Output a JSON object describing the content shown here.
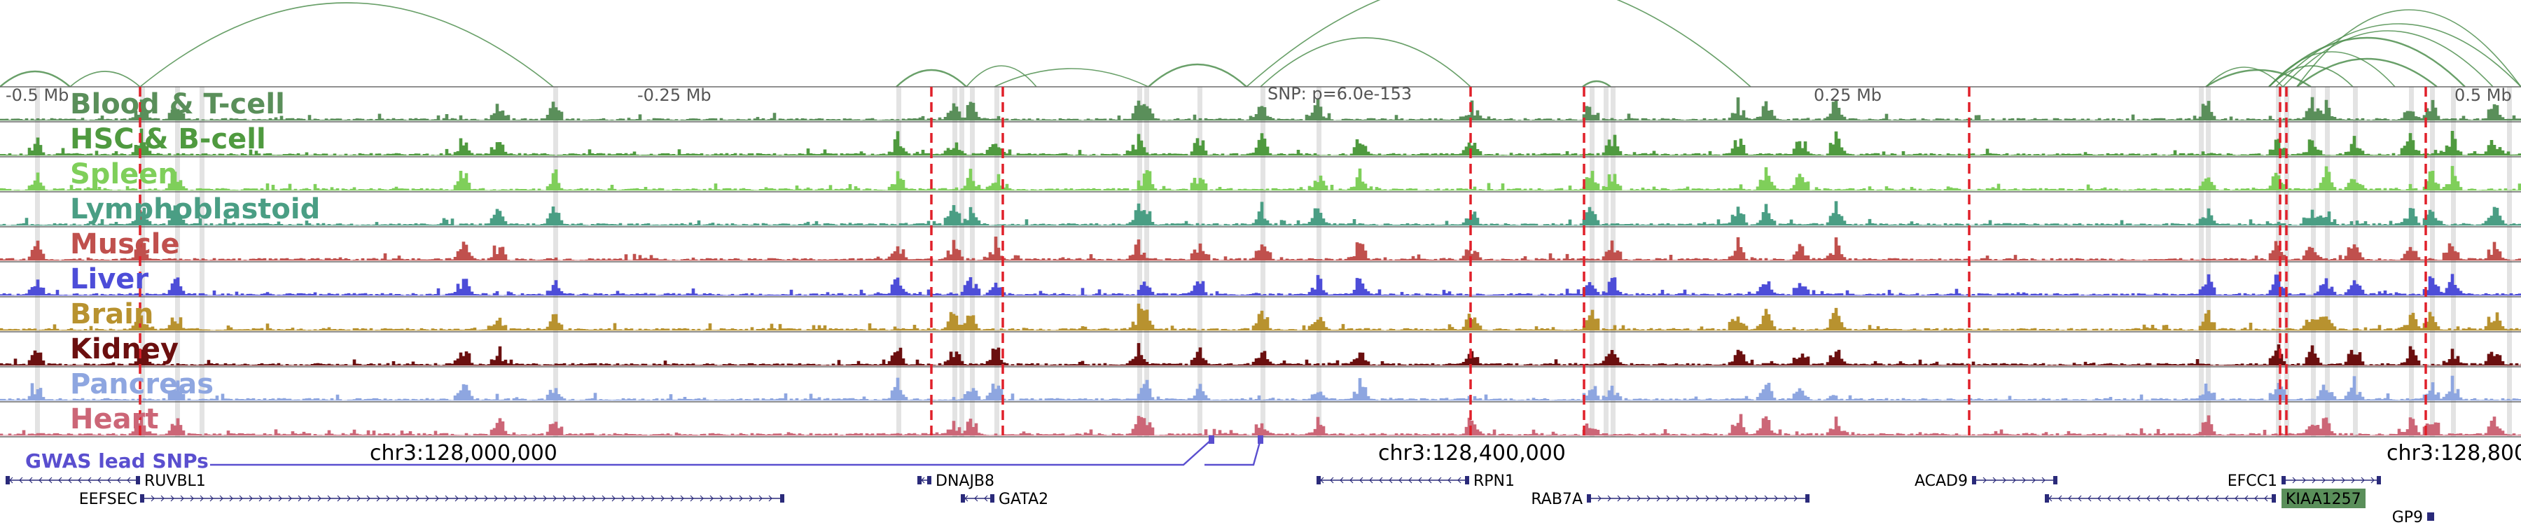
{
  "browser": {
    "scale_labels": [
      "-0.5 Mb",
      "-0.25 Mb",
      "0.25 Mb",
      "0.5 Mb"
    ],
    "snp_label": "SNP: p=6.0e-153",
    "coordinates": [
      "chr3:128,000,000",
      "chr3:128,400,000",
      "chr3:128,800"
    ],
    "gwas_label": "GWAS lead SNPs",
    "tracks": [
      {
        "name": "Blood & T-cell",
        "color": "#5a8f5a"
      },
      {
        "name": "HSC & B-cell",
        "color": "#4f9a3f"
      },
      {
        "name": "Spleen",
        "color": "#7fcf5a"
      },
      {
        "name": "Lymphoblastoid",
        "color": "#4a9e84"
      },
      {
        "name": "Muscle",
        "color": "#c0504d"
      },
      {
        "name": "Liver",
        "color": "#4d4dd8"
      },
      {
        "name": "Brain",
        "color": "#b8922f"
      },
      {
        "name": "Kidney",
        "color": "#6b0f0f"
      },
      {
        "name": "Pancreas",
        "color": "#8ea6e0"
      },
      {
        "name": "Heart",
        "color": "#cc6677"
      }
    ],
    "genes": [
      {
        "name": "RUVBL1",
        "strand": "-",
        "boxed": false
      },
      {
        "name": "EEFSEC",
        "strand": "+",
        "boxed": false
      },
      {
        "name": "DNAJB8",
        "strand": "-",
        "boxed": false
      },
      {
        "name": "GATA2",
        "strand": "-",
        "boxed": false
      },
      {
        "name": "RPN1",
        "strand": "-",
        "boxed": false
      },
      {
        "name": "RAB7A",
        "strand": "+",
        "boxed": false
      },
      {
        "name": "ACAD9",
        "strand": "+",
        "boxed": false
      },
      {
        "name": "EFCC1",
        "strand": "+",
        "boxed": false
      },
      {
        "name": "KIAA1257",
        "strand": "-",
        "boxed": true
      },
      {
        "name": "GP9",
        "strand": "+",
        "boxed": false
      }
    ],
    "colors": {
      "arcs": "#4f8f4f",
      "red_markers": "#e0202a",
      "gwas": "#5a4fcf",
      "genes": "#2a2a7a",
      "highlight": "#d9d9d9",
      "boxed_gene": "#5a8f5a"
    }
  }
}
